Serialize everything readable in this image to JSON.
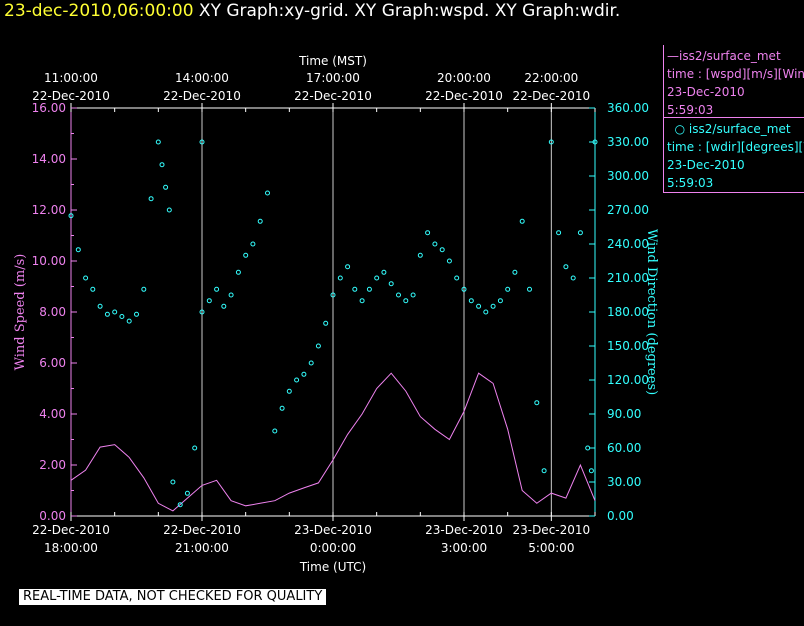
{
  "header": {
    "timestamp": "23-dec-2010,06:00:00",
    "graphs": "XY Graph:xy-grid.  XY Graph:wspd.  XY Graph:wdir."
  },
  "legend": {
    "wspd": {
      "name": "iss2/surface_met",
      "desc": "time : [wspd][m/s][Wind",
      "date": "23-Dec-2010",
      "time": "5:59:03",
      "color": "#ee82ee"
    },
    "wdir": {
      "name": "iss2/surface_met",
      "desc": "time : [wdir][degrees][W",
      "date": "23-Dec-2010",
      "time": "5:59:03",
      "color": "#33ffff"
    }
  },
  "banner": "REAL-TIME DATA, NOT CHECKED FOR QUALITY",
  "chart_data": {
    "type": "line",
    "top_axis": {
      "label": "Time (MST)",
      "ticks": [
        {
          "t": -3.0,
          "time": "11:00:00",
          "date": "22-Dec-2010"
        },
        {
          "t": 0.0,
          "time": "14:00:00",
          "date": "22-Dec-2010"
        },
        {
          "t": 3.0,
          "time": "17:00:00",
          "date": "22-Dec-2010"
        },
        {
          "t": 6.0,
          "time": "20:00:00",
          "date": "22-Dec-2010"
        },
        {
          "t": 8.0,
          "time": "22:00:00",
          "date": "22-Dec-2010"
        }
      ]
    },
    "bottom_axis": {
      "label": "Time (UTC)",
      "range": [
        "22-Dec-2010 18:00",
        "23-Dec-2010 06:00"
      ],
      "ticks": [
        {
          "date": "22-Dec-2010",
          "time": "18:00:00"
        },
        {
          "date": "22-Dec-2010",
          "time": "21:00:00"
        },
        {
          "date": "23-Dec-2010",
          "time": "0:00:00"
        },
        {
          "date": "23-Dec-2010",
          "time": "3:00:00"
        },
        {
          "date": "23-Dec-2010",
          "time": "5:00:00"
        }
      ]
    },
    "left_axis": {
      "label": "Wind Speed (m/s)",
      "range": [
        0,
        16
      ],
      "ticks": [
        "0.00",
        "2.00",
        "4.00",
        "6.00",
        "8.00",
        "10.00",
        "12.00",
        "14.00",
        "16.00"
      ],
      "color": "#ee82ee"
    },
    "right_axis": {
      "label": "Wind Direction (degrees)",
      "range": [
        0,
        360
      ],
      "ticks": [
        "0.00",
        "30.00",
        "60.00",
        "90.00",
        "120.00",
        "150.00",
        "180.00",
        "210.00",
        "240.00",
        "270.00",
        "300.00",
        "330.00",
        "360.00"
      ],
      "color": "#33ffff"
    },
    "grid": "vertical lines at major time ticks",
    "series": [
      {
        "name": "iss2/surface_met wspd",
        "kind": "line",
        "color": "#ee82ee",
        "points": [
          [
            "22-Dec-2010 18:00",
            1.4
          ],
          [
            "22-Dec-2010 18:20",
            1.8
          ],
          [
            "22-Dec-2010 18:40",
            2.7
          ],
          [
            "22-Dec-2010 19:00",
            2.8
          ],
          [
            "22-Dec-2010 19:20",
            2.3
          ],
          [
            "22-Dec-2010 19:40",
            1.5
          ],
          [
            "22-Dec-2010 20:00",
            0.5
          ],
          [
            "22-Dec-2010 20:20",
            0.2
          ],
          [
            "22-Dec-2010 20:40",
            0.7
          ],
          [
            "22-Dec-2010 21:00",
            1.2
          ],
          [
            "22-Dec-2010 21:20",
            1.4
          ],
          [
            "22-Dec-2010 21:40",
            0.6
          ],
          [
            "22-Dec-2010 22:00",
            0.4
          ],
          [
            "22-Dec-2010 22:20",
            0.5
          ],
          [
            "22-Dec-2010 22:40",
            0.6
          ],
          [
            "22-Dec-2010 23:00",
            0.9
          ],
          [
            "22-Dec-2010 23:20",
            1.1
          ],
          [
            "22-Dec-2010 23:40",
            1.3
          ],
          [
            "23-Dec-2010 00:00",
            2.2
          ],
          [
            "23-Dec-2010 00:20",
            3.2
          ],
          [
            "23-Dec-2010 00:40",
            4.0
          ],
          [
            "23-Dec-2010 01:00",
            5.0
          ],
          [
            "23-Dec-2010 01:20",
            5.6
          ],
          [
            "23-Dec-2010 01:40",
            4.9
          ],
          [
            "23-Dec-2010 02:00",
            3.9
          ],
          [
            "23-Dec-2010 02:20",
            3.4
          ],
          [
            "23-Dec-2010 02:40",
            3.0
          ],
          [
            "23-Dec-2010 03:00",
            4.1
          ],
          [
            "23-Dec-2010 03:20",
            5.6
          ],
          [
            "23-Dec-2010 03:40",
            5.2
          ],
          [
            "23-Dec-2010 04:00",
            3.4
          ],
          [
            "23-Dec-2010 04:20",
            1.0
          ],
          [
            "23-Dec-2010 04:40",
            0.5
          ],
          [
            "23-Dec-2010 05:00",
            0.9
          ],
          [
            "23-Dec-2010 05:20",
            0.7
          ],
          [
            "23-Dec-2010 05:40",
            2.0
          ],
          [
            "23-Dec-2010 06:00",
            0.6
          ]
        ]
      },
      {
        "name": "iss2/surface_met wdir",
        "kind": "scatter",
        "color": "#33ffff",
        "points": [
          [
            "22-Dec-2010 18:00",
            265
          ],
          [
            "22-Dec-2010 18:10",
            235
          ],
          [
            "22-Dec-2010 18:20",
            210
          ],
          [
            "22-Dec-2010 18:30",
            200
          ],
          [
            "22-Dec-2010 18:40",
            185
          ],
          [
            "22-Dec-2010 18:50",
            178
          ],
          [
            "22-Dec-2010 19:00",
            180
          ],
          [
            "22-Dec-2010 19:10",
            176
          ],
          [
            "22-Dec-2010 19:20",
            172
          ],
          [
            "22-Dec-2010 19:30",
            178
          ],
          [
            "22-Dec-2010 19:40",
            200
          ],
          [
            "22-Dec-2010 19:50",
            280
          ],
          [
            "22-Dec-2010 20:00",
            330
          ],
          [
            "22-Dec-2010 20:05",
            310
          ],
          [
            "22-Dec-2010 20:10",
            290
          ],
          [
            "22-Dec-2010 20:15",
            270
          ],
          [
            "22-Dec-2010 20:20",
            30
          ],
          [
            "22-Dec-2010 20:30",
            10
          ],
          [
            "22-Dec-2010 20:40",
            20
          ],
          [
            "22-Dec-2010 20:50",
            60
          ],
          [
            "22-Dec-2010 21:00",
            330
          ],
          [
            "22-Dec-2010 21:00",
            180
          ],
          [
            "22-Dec-2010 21:10",
            190
          ],
          [
            "22-Dec-2010 21:20",
            200
          ],
          [
            "22-Dec-2010 21:30",
            185
          ],
          [
            "22-Dec-2010 21:40",
            195
          ],
          [
            "22-Dec-2010 21:50",
            215
          ],
          [
            "22-Dec-2010 22:00",
            230
          ],
          [
            "22-Dec-2010 22:10",
            240
          ],
          [
            "22-Dec-2010 22:20",
            260
          ],
          [
            "22-Dec-2010 22:30",
            285
          ],
          [
            "22-Dec-2010 22:40",
            75
          ],
          [
            "22-Dec-2010 22:50",
            95
          ],
          [
            "22-Dec-2010 23:00",
            110
          ],
          [
            "22-Dec-2010 23:10",
            120
          ],
          [
            "22-Dec-2010 23:20",
            125
          ],
          [
            "22-Dec-2010 23:30",
            135
          ],
          [
            "22-Dec-2010 23:40",
            150
          ],
          [
            "22-Dec-2010 23:50",
            170
          ],
          [
            "23-Dec-2010 00:00",
            195
          ],
          [
            "23-Dec-2010 00:10",
            210
          ],
          [
            "23-Dec-2010 00:20",
            220
          ],
          [
            "23-Dec-2010 00:30",
            200
          ],
          [
            "23-Dec-2010 00:40",
            190
          ],
          [
            "23-Dec-2010 00:50",
            200
          ],
          [
            "23-Dec-2010 01:00",
            210
          ],
          [
            "23-Dec-2010 01:10",
            215
          ],
          [
            "23-Dec-2010 01:20",
            205
          ],
          [
            "23-Dec-2010 01:30",
            195
          ],
          [
            "23-Dec-2010 01:40",
            190
          ],
          [
            "23-Dec-2010 01:50",
            195
          ],
          [
            "23-Dec-2010 02:00",
            230
          ],
          [
            "23-Dec-2010 02:10",
            250
          ],
          [
            "23-Dec-2010 02:20",
            240
          ],
          [
            "23-Dec-2010 02:30",
            235
          ],
          [
            "23-Dec-2010 02:40",
            225
          ],
          [
            "23-Dec-2010 02:50",
            210
          ],
          [
            "23-Dec-2010 03:00",
            200
          ],
          [
            "23-Dec-2010 03:10",
            190
          ],
          [
            "23-Dec-2010 03:20",
            185
          ],
          [
            "23-Dec-2010 03:30",
            180
          ],
          [
            "23-Dec-2010 03:40",
            185
          ],
          [
            "23-Dec-2010 03:50",
            190
          ],
          [
            "23-Dec-2010 04:00",
            200
          ],
          [
            "23-Dec-2010 04:10",
            215
          ],
          [
            "23-Dec-2010 04:20",
            260
          ],
          [
            "23-Dec-2010 04:30",
            200
          ],
          [
            "23-Dec-2010 04:40",
            100
          ],
          [
            "23-Dec-2010 04:50",
            40
          ],
          [
            "23-Dec-2010 05:00",
            330
          ],
          [
            "23-Dec-2010 05:10",
            250
          ],
          [
            "23-Dec-2010 05:20",
            220
          ],
          [
            "23-Dec-2010 05:30",
            210
          ],
          [
            "23-Dec-2010 05:40",
            250
          ],
          [
            "23-Dec-2010 05:50",
            60
          ],
          [
            "23-Dec-2010 05:55",
            40
          ],
          [
            "23-Dec-2010 06:00",
            330
          ]
        ]
      }
    ]
  }
}
